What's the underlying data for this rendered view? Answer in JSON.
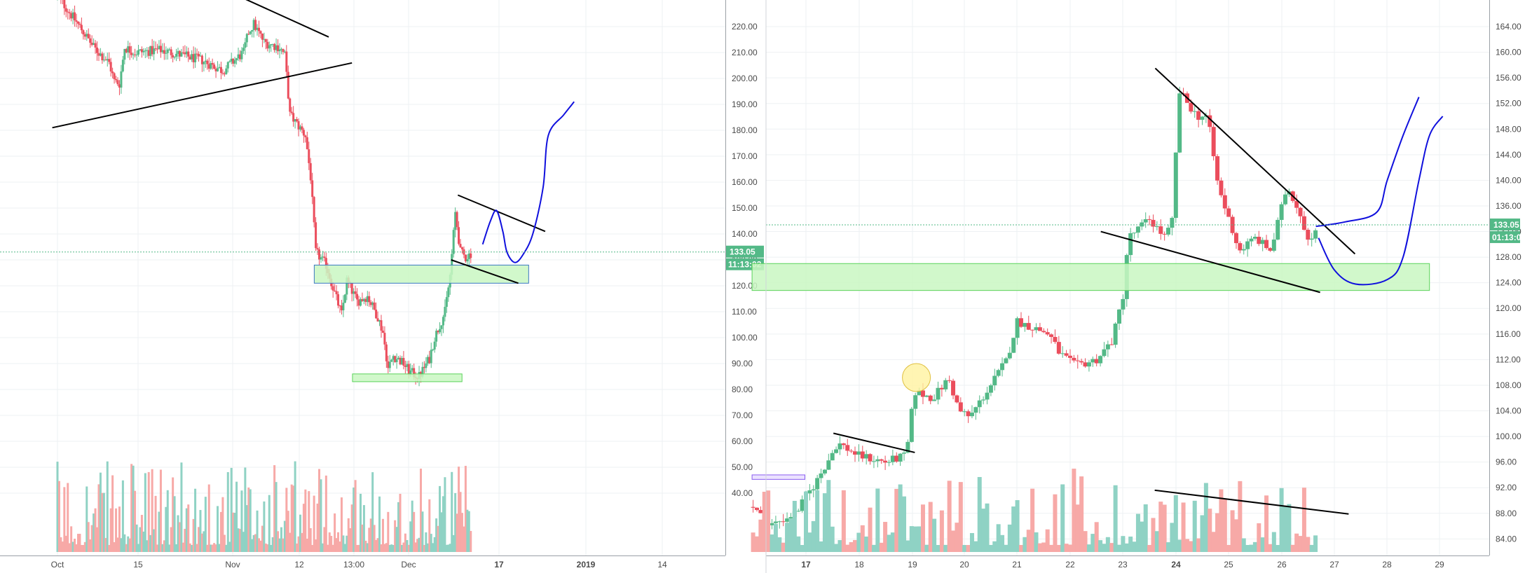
{
  "colors": {
    "up": "#53b987",
    "down": "#eb4d5c",
    "vol_up": "#8fd2c4",
    "vol_down": "#f7a9a7",
    "grid": "#eef1f3",
    "axis_text": "#4a4a4a",
    "last_price": "#53b987",
    "zone_fill": "#c9f7c2",
    "zone_border": "#5ad35a",
    "zone_border_blue": "#3a78c2",
    "trendline": "#000000",
    "projection": "#1010dd",
    "highlight_circle": "#fff2a0"
  },
  "chart_data": [
    {
      "type": "candlestick",
      "name": "left",
      "ylim": [
        35,
        236
      ],
      "y_ticks": [
        "220.00",
        "210.00",
        "200.00",
        "190.00",
        "180.00",
        "170.00",
        "160.00",
        "150.00",
        "140.00",
        "130.00",
        "120.00",
        "110.00",
        "100.00",
        "90.00",
        "80.00",
        "70.00",
        "60.00",
        "50.00",
        "40.00"
      ],
      "x_ticks": [
        "Oct",
        "15",
        "Nov",
        "12",
        "13:00",
        "Dec",
        "17",
        "2019",
        "14"
      ],
      "last_price": "133.05",
      "countdown": "11:13:02",
      "keypoints": [
        {
          "day": 0,
          "price": 232
        },
        {
          "day": 5,
          "price": 218
        },
        {
          "day": 7,
          "price": 212
        },
        {
          "day": 10,
          "price": 206
        },
        {
          "day": 11,
          "price": 199
        },
        {
          "day": 12,
          "price": 198
        },
        {
          "day": 13,
          "price": 212
        },
        {
          "day": 15,
          "price": 210
        },
        {
          "day": 20,
          "price": 211
        },
        {
          "day": 28,
          "price": 207
        },
        {
          "day": 32,
          "price": 203
        },
        {
          "day": 36,
          "price": 210
        },
        {
          "day": 37,
          "price": 218
        },
        {
          "day": 38,
          "price": 221
        },
        {
          "day": 40,
          "price": 214
        },
        {
          "day": 43,
          "price": 212
        },
        {
          "day": 44,
          "price": 209
        },
        {
          "day": 45,
          "price": 186
        },
        {
          "day": 48,
          "price": 178
        },
        {
          "day": 49,
          "price": 162
        },
        {
          "day": 50,
          "price": 133
        },
        {
          "day": 52,
          "price": 128
        },
        {
          "day": 54,
          "price": 115
        },
        {
          "day": 55,
          "price": 109
        },
        {
          "day": 56,
          "price": 122
        },
        {
          "day": 58,
          "price": 114
        },
        {
          "day": 60,
          "price": 116
        },
        {
          "day": 61,
          "price": 112
        },
        {
          "day": 62,
          "price": 108
        },
        {
          "day": 63,
          "price": 102
        },
        {
          "day": 64,
          "price": 88
        },
        {
          "day": 65,
          "price": 93
        },
        {
          "day": 67,
          "price": 90
        },
        {
          "day": 68,
          "price": 87
        },
        {
          "day": 70,
          "price": 85
        },
        {
          "day": 72,
          "price": 92
        },
        {
          "day": 73,
          "price": 100
        },
        {
          "day": 75,
          "price": 110
        },
        {
          "day": 76,
          "price": 124
        },
        {
          "day": 77,
          "price": 148
        },
        {
          "day": 78,
          "price": 133
        },
        {
          "day": 79,
          "price": 131
        },
        {
          "day": 80,
          "price": 132.5
        }
      ],
      "zones": [
        {
          "from_day": 49.7,
          "to_day": 91.2,
          "top": 128,
          "bottom": 121,
          "border": "blue"
        },
        {
          "from_day": 57.1,
          "to_day": 78.3,
          "top": 86,
          "bottom": 83,
          "border": "green"
        }
      ],
      "trendlines": [
        {
          "from": [
            -1,
            181
          ],
          "to": [
            57,
            206
          ]
        },
        {
          "from": [
            31.5,
            235
          ],
          "to": [
            52.5,
            216
          ]
        },
        {
          "from": [
            77.5,
            155
          ],
          "to": [
            94.4,
            141
          ]
        },
        {
          "from": [
            76.2,
            130
          ],
          "to": [
            89.2,
            121
          ]
        }
      ],
      "projection": [
        {
          "day": 82.3,
          "price": 136
        },
        {
          "day": 83.8,
          "price": 145
        },
        {
          "day": 85,
          "price": 149
        },
        {
          "day": 86.2,
          "price": 141
        },
        {
          "day": 87,
          "price": 133
        },
        {
          "day": 88.5,
          "price": 129
        },
        {
          "day": 90.1,
          "price": 132
        },
        {
          "day": 92,
          "price": 140
        },
        {
          "day": 94,
          "price": 158
        },
        {
          "day": 95,
          "price": 178
        },
        {
          "day": 98,
          "price": 186
        },
        {
          "day": 100,
          "price": 191
        }
      ]
    },
    {
      "type": "candlestick",
      "name": "right",
      "ylim": [
        80.5,
        167.5
      ],
      "y_ticks": [
        "164.00",
        "160.00",
        "156.00",
        "152.00",
        "148.00",
        "144.00",
        "140.00",
        "136.00",
        "132.00",
        "128.00",
        "124.00",
        "120.00",
        "116.00",
        "112.00",
        "108.00",
        "104.00",
        "100.00",
        "96.00",
        "92.00",
        "88.00",
        "84.00"
      ],
      "x_ticks": [
        "17",
        "18",
        "19",
        "20",
        "21",
        "22",
        "23",
        "24",
        "25",
        "26",
        "27",
        "28",
        "29"
      ],
      "last_price": "133.05",
      "countdown": "01:13:02",
      "keypoints": [
        {
          "day": 16,
          "price": 89
        },
        {
          "day": 16.3,
          "price": 86
        },
        {
          "day": 16.8,
          "price": 88
        },
        {
          "day": 17.2,
          "price": 93
        },
        {
          "day": 17.6,
          "price": 99
        },
        {
          "day": 18,
          "price": 97
        },
        {
          "day": 18.5,
          "price": 96
        },
        {
          "day": 18.9,
          "price": 97
        },
        {
          "day": 19.05,
          "price": 107
        },
        {
          "day": 19.4,
          "price": 106
        },
        {
          "day": 19.7,
          "price": 109
        },
        {
          "day": 19.9,
          "price": 104
        },
        {
          "day": 20.1,
          "price": 103
        },
        {
          "day": 20.5,
          "price": 108
        },
        {
          "day": 20.8,
          "price": 112
        },
        {
          "day": 21,
          "price": 118
        },
        {
          "day": 21.3,
          "price": 117
        },
        {
          "day": 21.6,
          "price": 116
        },
        {
          "day": 21.8,
          "price": 113
        },
        {
          "day": 22.1,
          "price": 111
        },
        {
          "day": 22.5,
          "price": 112
        },
        {
          "day": 22.8,
          "price": 115
        },
        {
          "day": 23,
          "price": 122
        },
        {
          "day": 23.1,
          "price": 131
        },
        {
          "day": 23.5,
          "price": 134
        },
        {
          "day": 23.8,
          "price": 131
        },
        {
          "day": 23.95,
          "price": 134
        },
        {
          "day": 24.05,
          "price": 154
        },
        {
          "day": 24.4,
          "price": 150
        },
        {
          "day": 24.6,
          "price": 150
        },
        {
          "day": 24.8,
          "price": 139
        },
        {
          "day": 25.2,
          "price": 129
        },
        {
          "day": 25.5,
          "price": 131
        },
        {
          "day": 25.8,
          "price": 129
        },
        {
          "day": 26.1,
          "price": 139
        },
        {
          "day": 26.3,
          "price": 136
        },
        {
          "day": 26.5,
          "price": 131
        },
        {
          "day": 26.7,
          "price": 132.5
        }
      ],
      "zones": [
        {
          "from_day": 15.98,
          "to_day": 28.8,
          "top": 127,
          "bottom": 122.8,
          "border": "green"
        },
        {
          "from_day": 15.98,
          "to_day": 16.98,
          "top": 94,
          "bottom": 93.3,
          "border": "purple"
        }
      ],
      "trendlines": [
        {
          "from": [
            23.61,
            157.5
          ],
          "to": [
            27.39,
            128.5
          ]
        },
        {
          "from": [
            22.58,
            132
          ],
          "to": [
            26.73,
            122.5
          ]
        },
        {
          "from": [
            17.52,
            100.5
          ],
          "to": [
            19.06,
            97.5
          ]
        },
        {
          "from": [
            23.6,
            91.6
          ],
          "to": [
            27.27,
            87.9
          ]
        }
      ],
      "projection_a": [
        {
          "day": 26.7,
          "price": 131
        },
        {
          "day": 27,
          "price": 126
        },
        {
          "day": 27.4,
          "price": 123.8
        },
        {
          "day": 28,
          "price": 124.5
        },
        {
          "day": 28.3,
          "price": 128
        },
        {
          "day": 28.6,
          "price": 140
        },
        {
          "day": 28.8,
          "price": 147
        },
        {
          "day": 29.05,
          "price": 150
        }
      ],
      "projection_b": [
        {
          "day": 26.65,
          "price": 132.8
        },
        {
          "day": 27.2,
          "price": 133.5
        },
        {
          "day": 27.8,
          "price": 135
        },
        {
          "day": 28,
          "price": 140
        },
        {
          "day": 28.3,
          "price": 147
        },
        {
          "day": 28.6,
          "price": 153
        }
      ],
      "highlight_circle": {
        "day": 19.09,
        "price": 109.2
      }
    }
  ]
}
